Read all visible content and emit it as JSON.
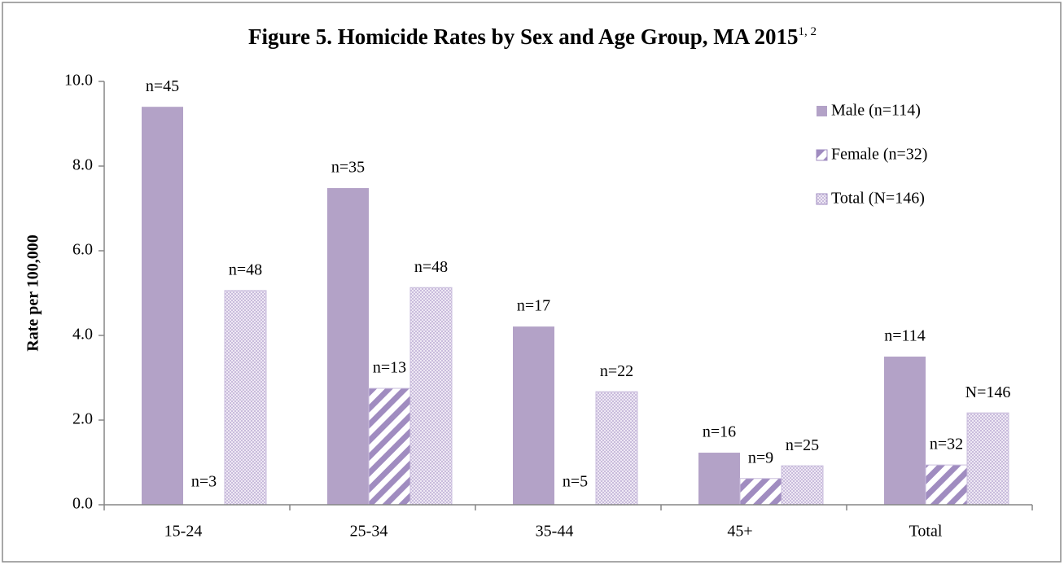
{
  "chart_data": {
    "type": "bar",
    "title": "Figure 5. Homicide Rates by Sex and Age Group, MA 2015",
    "title_superscript": "1, 2",
    "y_label": "Rate per 100,000",
    "categories": [
      "15-24",
      "25-34",
      "35-44",
      "45+",
      "Total"
    ],
    "series": [
      {
        "name": "Male (n=114)",
        "color": "#b3a2c7",
        "pattern": "solid",
        "values": [
          9.4,
          7.48,
          4.21,
          1.23,
          3.5
        ],
        "annotations": [
          "n=45",
          "n=35",
          "n=17",
          "n=16",
          "n=114"
        ]
      },
      {
        "name": "Female (n=32)",
        "color": "#a08cc0",
        "pattern": "diagonal",
        "values": [
          null,
          2.75,
          null,
          0.62,
          0.94
        ],
        "annotations": [
          "n=3",
          "n=13",
          "n=5",
          "n=9",
          "n=32"
        ]
      },
      {
        "name": "Total (N=146)",
        "color": "#c9bcdc",
        "pattern": "crosshatch",
        "values": [
          5.06,
          5.13,
          2.67,
          0.92,
          2.17
        ],
        "annotations": [
          "n=48",
          "n=48",
          "n=22",
          "n=25",
          "N=146"
        ]
      }
    ],
    "ylim": [
      0,
      10
    ],
    "yticks": [
      {
        "value": 0,
        "label": "0.0"
      },
      {
        "value": 2,
        "label": "2.0"
      },
      {
        "value": 4,
        "label": "4.0"
      },
      {
        "value": 6,
        "label": "6.0"
      },
      {
        "value": 8,
        "label": "8.0"
      },
      {
        "value": 10,
        "label": "10.0"
      }
    ],
    "grid": false,
    "legend": "top-right"
  }
}
